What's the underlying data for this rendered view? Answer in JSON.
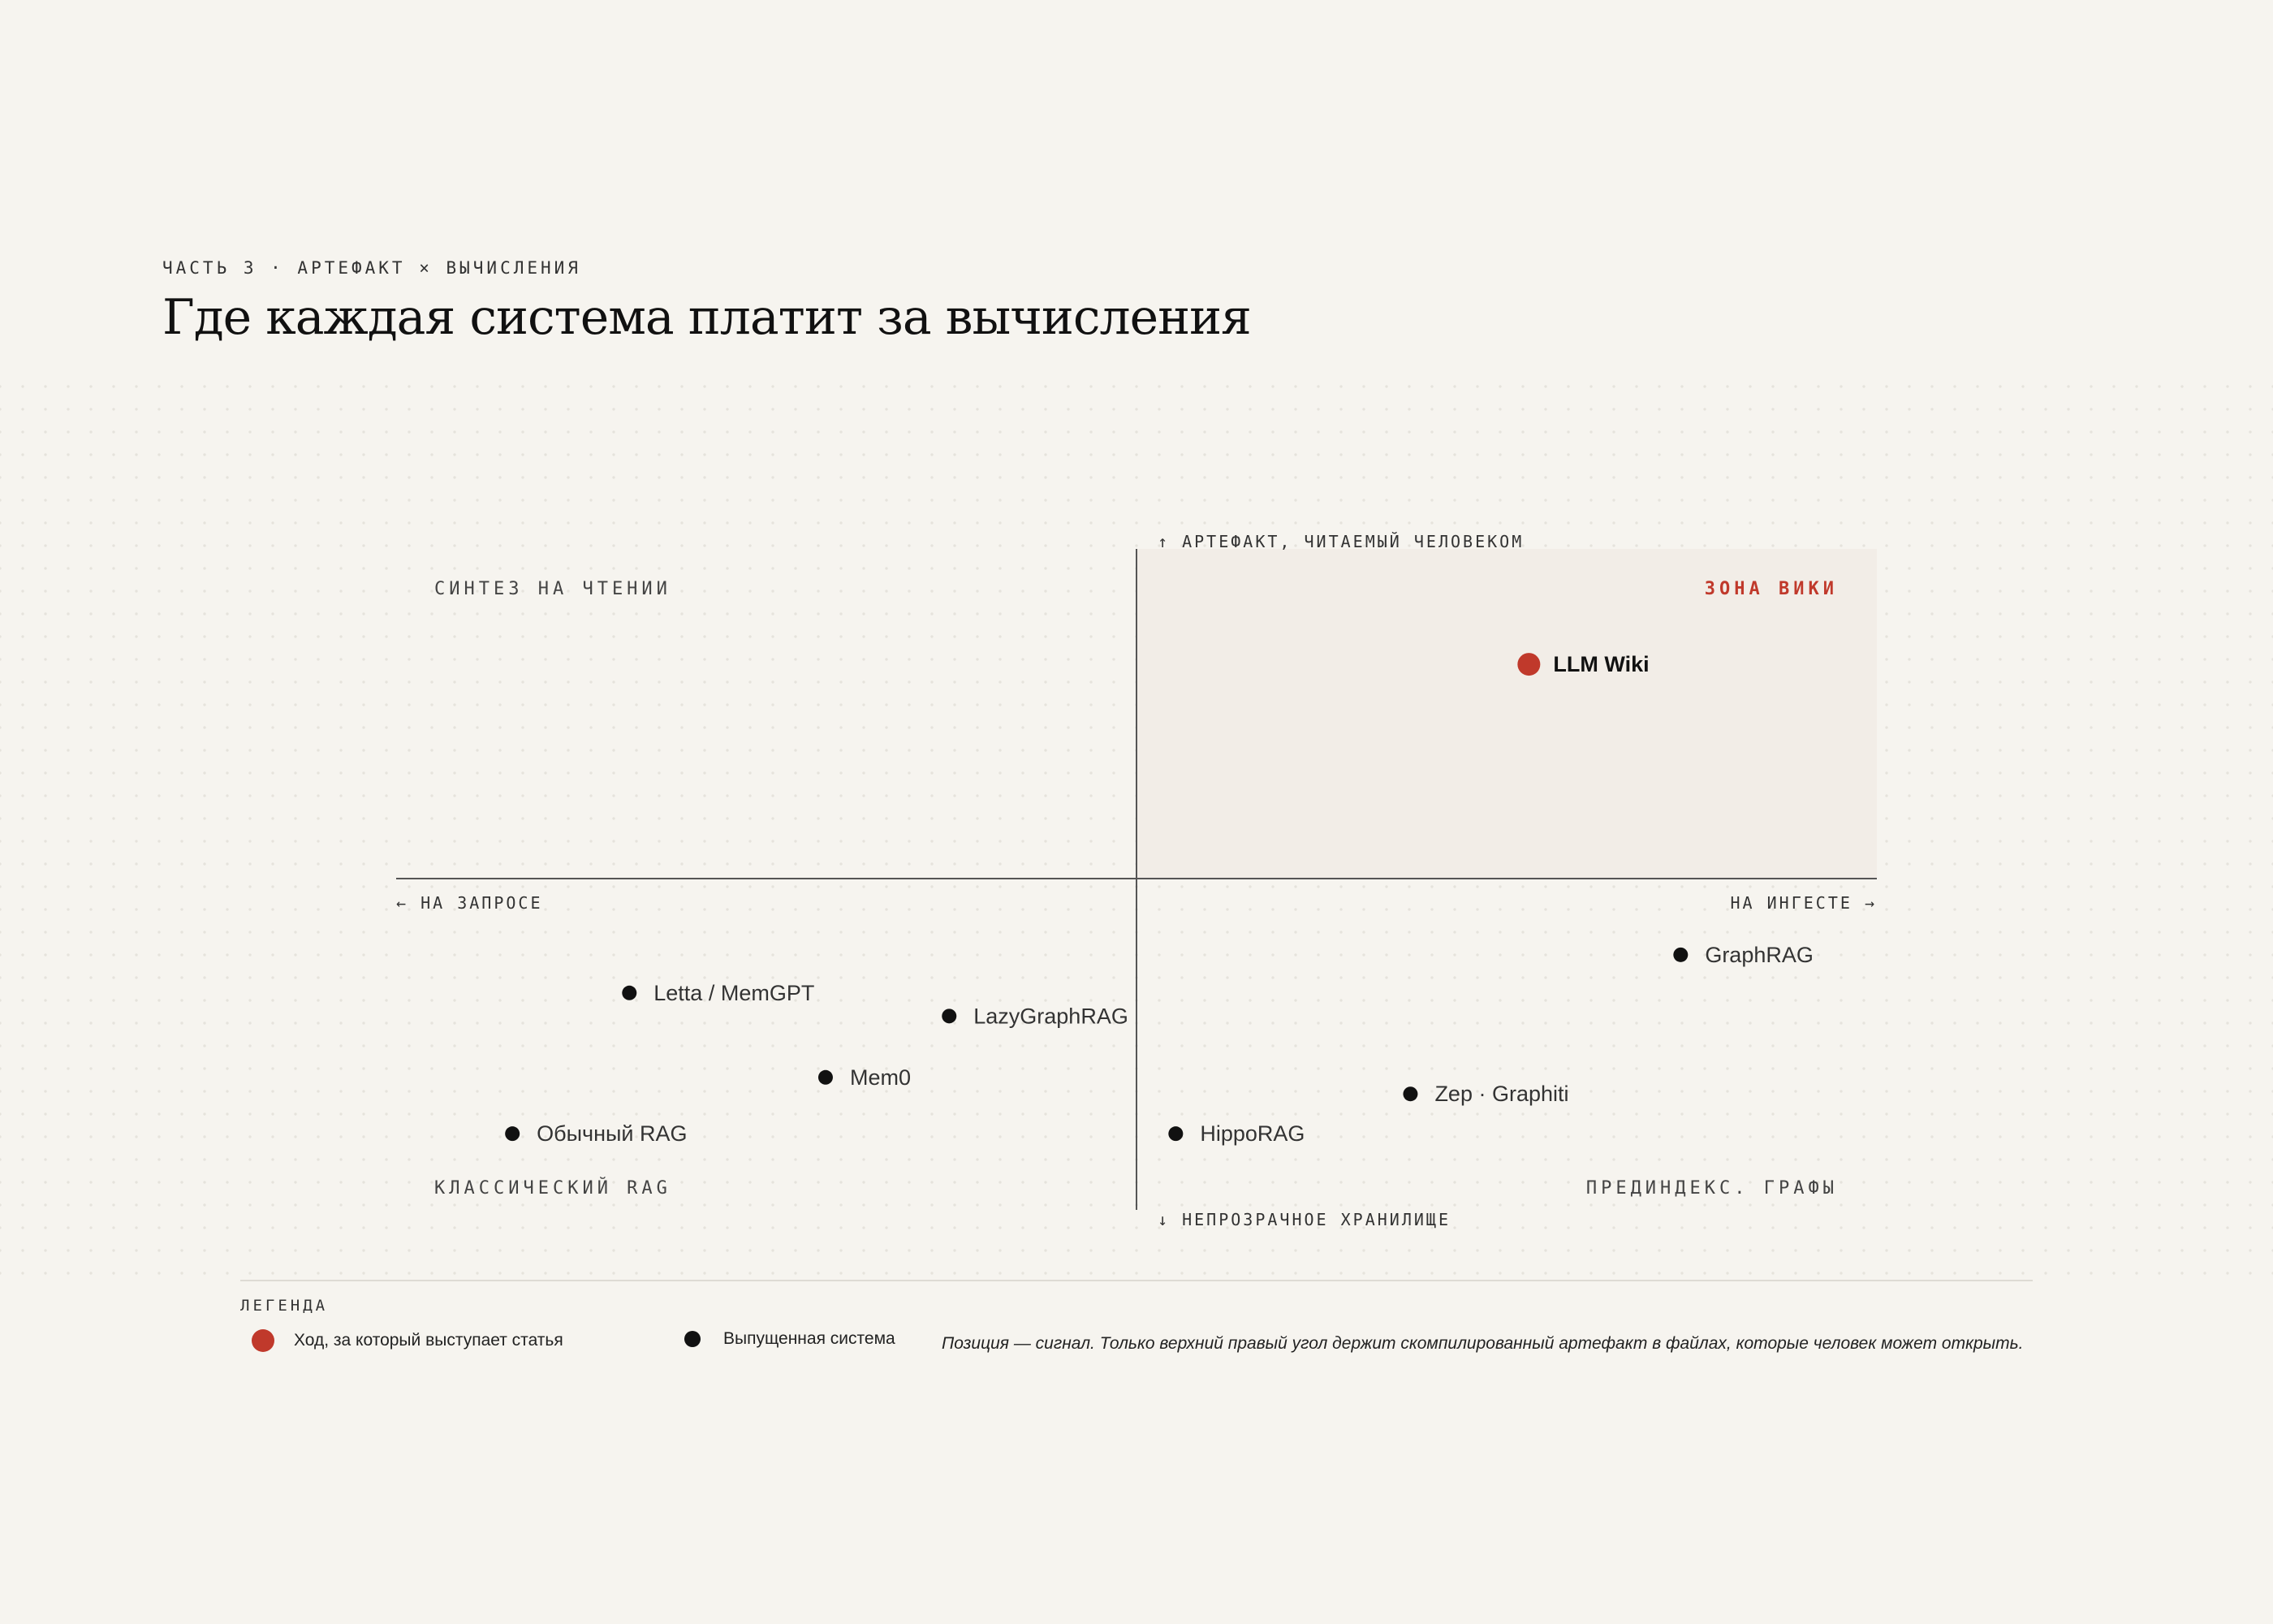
{
  "kicker": "ЧАСТЬ 3 · АРТЕФАКТ × ВЫЧИСЛЕНИЯ",
  "title": "Где каждая система платит за вычисления",
  "chart_data": {
    "type": "scatter",
    "x_axis": {
      "negative_label": "← НА ЗАПРОСЕ",
      "positive_label": "НА ИНГЕСТЕ →",
      "range": [
        -1,
        1
      ]
    },
    "y_axis": {
      "positive_label": "↑ АРТЕФАКТ, ЧИТАЕМЫЙ ЧЕЛОВЕКОМ",
      "negative_label": "↓ НЕПРОЗРАЧНОЕ ХРАНИЛИЩЕ",
      "range": [
        -1,
        1
      ]
    },
    "quadrants": {
      "top_left": "СИНТЕЗ НА ЧТЕНИИ",
      "top_right": "ЗОНА ВИКИ",
      "bottom_left": "КЛАССИЧЕСКИЙ RAG",
      "bottom_right": "ПРЕДИНДЕКС. ГРАФЫ"
    },
    "highlight_quadrant": "top-right",
    "points": [
      {
        "name": "LLM Wiki",
        "x": 0.53,
        "y": 0.65,
        "kind": "advocated"
      },
      {
        "name": "GraphRAG",
        "x": 0.735,
        "y": -0.23,
        "kind": "released"
      },
      {
        "name": "Letta / MemGPT",
        "x": -0.685,
        "y": -0.345,
        "kind": "released"
      },
      {
        "name": "LazyGraphRAG",
        "x": -0.253,
        "y": -0.415,
        "kind": "released"
      },
      {
        "name": "Mem0",
        "x": -0.42,
        "y": -0.6,
        "kind": "released"
      },
      {
        "name": "Zep · Graphiti",
        "x": 0.37,
        "y": -0.65,
        "kind": "released"
      },
      {
        "name": "HippoRAG",
        "x": 0.053,
        "y": -0.77,
        "kind": "released"
      },
      {
        "name": "Обычный RAG",
        "x": -0.843,
        "y": -0.77,
        "kind": "released"
      }
    ]
  },
  "colors": {
    "accent": "#c0392b",
    "point": "#111111",
    "highlight_fill": "#f2ede7"
  },
  "legend": {
    "heading": "ЛЕГЕНДА",
    "advocated": "Ход, за который выступает статья",
    "released": "Выпущенная система",
    "note": "Позиция — сигнал. Только верхний правый угол держит скомпилированный артефакт в файлах, которые человек может открыть."
  }
}
